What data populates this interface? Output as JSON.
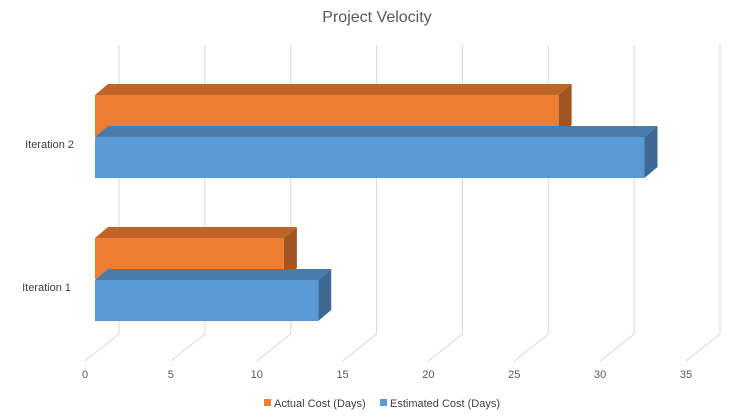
{
  "chart_data": {
    "type": "bar",
    "orientation": "horizontal",
    "style": "3d",
    "title": "Project Velocity",
    "xlabel": "",
    "ylabel": "",
    "categories": [
      "Iteration 1",
      "Iteration 2"
    ],
    "series": [
      {
        "name": "Actual Cost (Days)",
        "values": [
          11,
          27
        ],
        "color": "#ED7D31"
      },
      {
        "name": "Estimated Cost (Days)",
        "values": [
          13,
          32
        ],
        "color": "#5B9BD5"
      }
    ],
    "xlim": [
      0,
      35
    ],
    "xticks": [
      "0",
      "5",
      "10",
      "15",
      "20",
      "25",
      "30",
      "35"
    ],
    "grid": true,
    "legend": "bottom"
  }
}
